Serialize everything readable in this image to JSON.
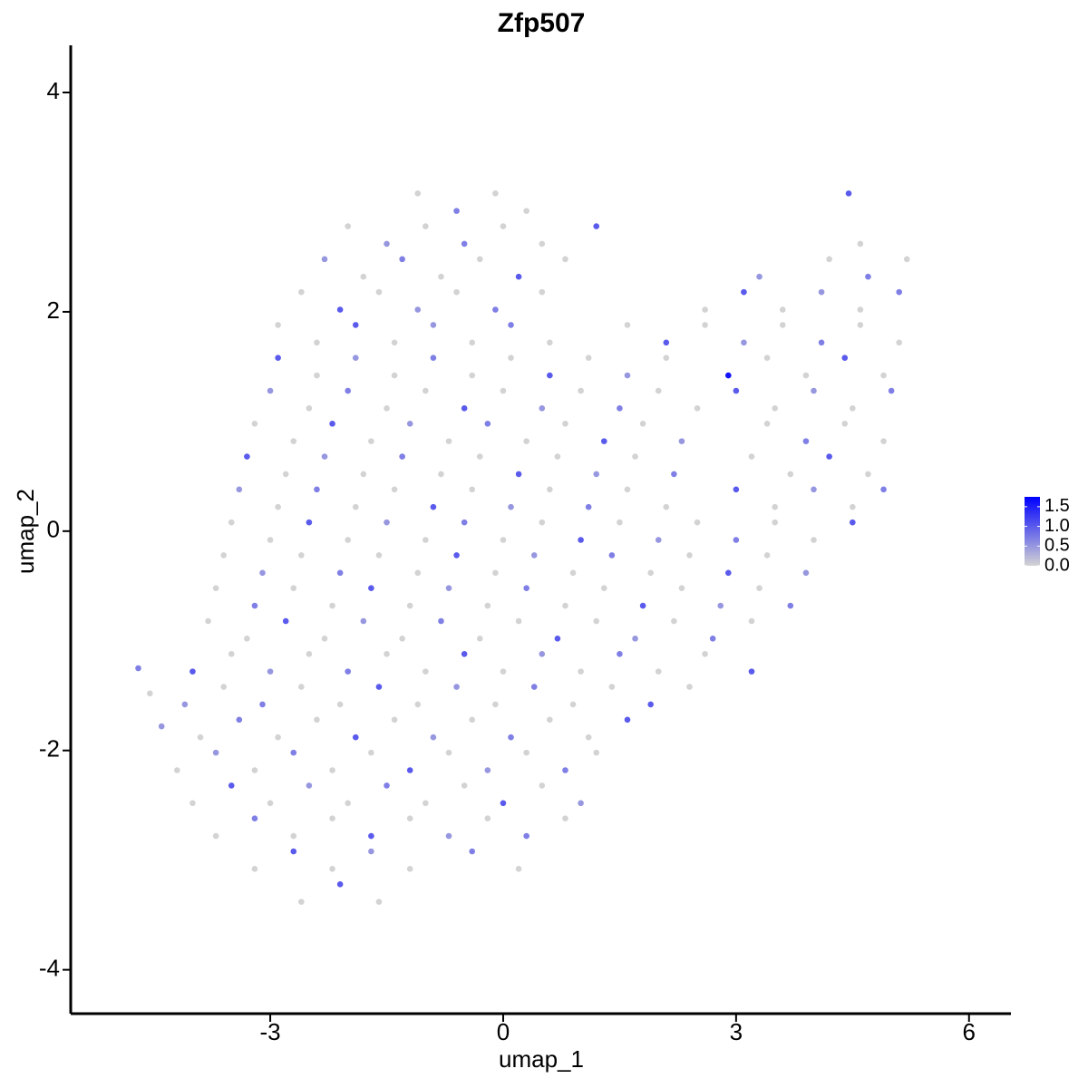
{
  "chart_data": {
    "type": "scatter",
    "title": "Zfp507",
    "xlabel": "umap_1",
    "ylabel": "umap_2",
    "xlim": [
      -5.57,
      6.54
    ],
    "ylim": [
      -4.4,
      4.43
    ],
    "xticks": [
      -3,
      0,
      3,
      6
    ],
    "yticks": [
      -4,
      -2,
      0,
      2,
      4
    ],
    "color_low": "#d3d3d3",
    "color_high": "#0000ff",
    "colorlim": [
      0,
      1.75
    ],
    "colorbar_ticks": [
      {
        "value": 0,
        "label": "0.0"
      },
      0.5,
      {
        "value": 1,
        "label": "1.0"
      },
      1.5
    ],
    "x": [
      -1.1,
      -0.6,
      -0.1,
      0.3,
      4.45,
      -2.0,
      -1.5,
      -1.0,
      -0.5,
      0.0,
      0.5,
      1.2,
      4.6,
      -2.3,
      -1.8,
      -1.3,
      -0.8,
      -0.3,
      0.2,
      0.8,
      3.3,
      4.2,
      4.7,
      5.2,
      -2.6,
      -2.1,
      -1.6,
      -1.1,
      -0.6,
      -0.1,
      0.5,
      2.6,
      3.1,
      3.6,
      4.1,
      4.6,
      5.1,
      -2.9,
      -2.4,
      -1.9,
      -1.4,
      -0.9,
      -0.4,
      0.1,
      0.6,
      1.6,
      2.1,
      2.6,
      3.1,
      3.6,
      4.1,
      4.6,
      5.1,
      -2.9,
      -2.4,
      -1.9,
      -1.4,
      -0.9,
      -0.4,
      0.1,
      0.6,
      1.1,
      1.6,
      2.1,
      2.9,
      3.4,
      3.9,
      4.4,
      4.9,
      -3.0,
      -2.5,
      -2.0,
      -1.5,
      -1.0,
      -0.5,
      0.0,
      0.5,
      1.0,
      1.5,
      2.0,
      2.5,
      3.0,
      3.5,
      4.0,
      4.5,
      5.0,
      -3.2,
      -2.7,
      -2.2,
      -1.7,
      -1.2,
      -0.7,
      -0.2,
      0.3,
      0.8,
      1.3,
      1.8,
      2.3,
      3.4,
      3.9,
      4.4,
      4.9,
      -3.3,
      -2.8,
      -2.3,
      -1.8,
      -1.3,
      -0.8,
      -0.3,
      0.2,
      0.7,
      1.2,
      1.7,
      2.2,
      3.2,
      3.7,
      4.2,
      4.7,
      -3.4,
      -2.9,
      -2.4,
      -1.9,
      -1.4,
      -0.9,
      -0.4,
      0.1,
      0.6,
      1.1,
      1.6,
      2.1,
      3.0,
      3.5,
      4.0,
      4.5,
      4.9,
      -3.5,
      -3.0,
      -2.5,
      -2.0,
      -1.5,
      -1.0,
      -0.5,
      0.0,
      0.5,
      1.0,
      1.5,
      2.0,
      2.5,
      3.0,
      3.5,
      4.0,
      4.5,
      -3.6,
      -3.1,
      -2.6,
      -2.1,
      -1.6,
      -1.1,
      -0.6,
      -0.1,
      0.4,
      0.9,
      1.4,
      1.9,
      2.4,
      2.9,
      3.4,
      3.9,
      -3.7,
      -3.2,
      -2.7,
      -2.2,
      -1.7,
      -1.2,
      -0.7,
      -0.2,
      0.3,
      0.8,
      1.3,
      1.8,
      2.3,
      2.8,
      3.3,
      3.7,
      -3.8,
      -3.3,
      -2.8,
      -2.3,
      -1.8,
      -1.3,
      -0.8,
      -0.3,
      0.2,
      0.7,
      1.2,
      1.7,
      2.2,
      2.7,
      3.2,
      -4.7,
      -4.0,
      -3.5,
      -3.0,
      -2.5,
      -2.0,
      -1.5,
      -1.0,
      -0.5,
      0.0,
      0.5,
      1.0,
      1.5,
      2.0,
      2.6,
      3.2,
      -4.55,
      -4.1,
      -3.6,
      -3.1,
      -2.6,
      -2.1,
      -1.6,
      -1.1,
      -0.6,
      -0.1,
      0.4,
      0.9,
      1.4,
      1.9,
      2.4,
      -4.4,
      -3.9,
      -3.4,
      -2.9,
      -2.4,
      -1.9,
      -1.4,
      -0.9,
      -0.4,
      0.1,
      0.6,
      1.1,
      1.6,
      -4.2,
      -3.7,
      -3.2,
      -2.7,
      -2.2,
      -1.7,
      -1.2,
      -0.7,
      -0.2,
      0.3,
      0.8,
      1.2,
      -4.0,
      -3.5,
      -3.0,
      -2.5,
      -2.0,
      -1.5,
      -1.0,
      -0.5,
      0.0,
      0.5,
      1.0,
      -3.7,
      -3.2,
      -2.7,
      -2.2,
      -1.7,
      -1.2,
      -0.7,
      -0.2,
      0.3,
      0.8,
      -3.2,
      -2.7,
      -2.2,
      -1.7,
      -1.2,
      -0.4,
      0.2,
      -2.6,
      -2.1,
      -1.6
    ],
    "y": [
      3.08,
      2.92,
      3.08,
      2.92,
      3.08,
      2.78,
      2.62,
      2.78,
      2.62,
      2.78,
      2.62,
      2.78,
      2.62,
      2.48,
      2.32,
      2.48,
      2.32,
      2.48,
      2.32,
      2.48,
      2.32,
      2.48,
      2.32,
      2.48,
      2.18,
      2.02,
      2.18,
      2.02,
      2.18,
      2.02,
      2.18,
      2.02,
      2.18,
      2.02,
      2.18,
      2.02,
      2.18,
      1.88,
      1.72,
      1.88,
      1.72,
      1.88,
      1.72,
      1.88,
      1.72,
      1.88,
      1.72,
      1.88,
      1.72,
      1.88,
      1.72,
      1.88,
      1.72,
      1.58,
      1.42,
      1.58,
      1.42,
      1.58,
      1.42,
      1.58,
      1.42,
      1.58,
      1.42,
      1.58,
      1.42,
      1.58,
      1.42,
      1.58,
      1.42,
      1.28,
      1.12,
      1.28,
      1.12,
      1.28,
      1.12,
      1.28,
      1.12,
      1.28,
      1.12,
      1.28,
      1.12,
      1.28,
      1.12,
      1.28,
      1.12,
      1.28,
      0.98,
      0.82,
      0.98,
      0.82,
      0.98,
      0.82,
      0.98,
      0.82,
      0.98,
      0.82,
      0.98,
      0.82,
      0.98,
      0.82,
      0.98,
      0.82,
      0.68,
      0.52,
      0.68,
      0.52,
      0.68,
      0.52,
      0.68,
      0.52,
      0.68,
      0.52,
      0.68,
      0.52,
      0.68,
      0.52,
      0.68,
      0.52,
      0.38,
      0.22,
      0.38,
      0.22,
      0.38,
      0.22,
      0.38,
      0.22,
      0.38,
      0.22,
      0.38,
      0.22,
      0.38,
      0.22,
      0.38,
      0.22,
      0.38,
      0.08,
      -0.08,
      0.08,
      -0.08,
      0.08,
      -0.08,
      0.08,
      -0.08,
      0.08,
      -0.08,
      0.08,
      -0.08,
      0.08,
      -0.08,
      0.08,
      -0.08,
      0.08,
      -0.22,
      -0.38,
      -0.22,
      -0.38,
      -0.22,
      -0.38,
      -0.22,
      -0.38,
      -0.22,
      -0.38,
      -0.22,
      -0.38,
      -0.22,
      -0.38,
      -0.22,
      -0.38,
      -0.52,
      -0.68,
      -0.52,
      -0.68,
      -0.52,
      -0.68,
      -0.52,
      -0.68,
      -0.52,
      -0.68,
      -0.52,
      -0.68,
      -0.52,
      -0.68,
      -0.52,
      -0.68,
      -0.82,
      -0.98,
      -0.82,
      -0.98,
      -0.82,
      -0.98,
      -0.82,
      -0.98,
      -0.82,
      -0.98,
      -0.82,
      -0.98,
      -0.82,
      -0.98,
      -0.82,
      -1.25,
      -1.28,
      -1.12,
      -1.28,
      -1.12,
      -1.28,
      -1.12,
      -1.28,
      -1.12,
      -1.28,
      -1.12,
      -1.28,
      -1.12,
      -1.28,
      -1.12,
      -1.28,
      -1.48,
      -1.58,
      -1.42,
      -1.58,
      -1.42,
      -1.58,
      -1.42,
      -1.58,
      -1.42,
      -1.58,
      -1.42,
      -1.58,
      -1.42,
      -1.58,
      -1.42,
      -1.78,
      -1.88,
      -1.72,
      -1.88,
      -1.72,
      -1.88,
      -1.72,
      -1.88,
      -1.72,
      -1.88,
      -1.72,
      -1.88,
      -1.72,
      -2.18,
      -2.02,
      -2.18,
      -2.02,
      -2.18,
      -2.02,
      -2.18,
      -2.02,
      -2.18,
      -2.02,
      -2.18,
      -2.02,
      -2.48,
      -2.32,
      -2.48,
      -2.32,
      -2.48,
      -2.32,
      -2.48,
      -2.32,
      -2.48,
      -2.32,
      -2.48,
      -2.78,
      -2.62,
      -2.78,
      -2.62,
      -2.78,
      -2.62,
      -2.78,
      -2.62,
      -2.78,
      -2.62,
      -3.08,
      -2.92,
      -3.08,
      -2.92,
      -3.08,
      -2.92,
      -3.08,
      -3.38,
      -3.22,
      -3.38
    ],
    "values": [
      0,
      0.7,
      0,
      0,
      1.0,
      0,
      0.5,
      0,
      0.7,
      0,
      0,
      1.0,
      0,
      0.5,
      0,
      0.7,
      0,
      0,
      1.0,
      0,
      0.5,
      0,
      0.7,
      0,
      0,
      1.0,
      0,
      0.5,
      0,
      0.7,
      0,
      0,
      1.0,
      0,
      0.5,
      0,
      0.7,
      0,
      0,
      1.0,
      0,
      0.5,
      0,
      0.7,
      0,
      0,
      1.0,
      0,
      0.5,
      0,
      0.7,
      0,
      0,
      1.0,
      0,
      0.5,
      0,
      0.7,
      0,
      0,
      1.0,
      0,
      0.5,
      0,
      1.6,
      0,
      0,
      1.0,
      0,
      0.5,
      0,
      0.7,
      0,
      0,
      1.0,
      0,
      0.5,
      0,
      0.7,
      0,
      0,
      1.0,
      0,
      0.5,
      0,
      0.7,
      0,
      0,
      1.0,
      0,
      0.5,
      0,
      0.7,
      0,
      0,
      1.0,
      0,
      0.5,
      0,
      0.7,
      0,
      0,
      1.0,
      0,
      0.5,
      0,
      0.7,
      0,
      0,
      1.0,
      0,
      0.5,
      0,
      0.7,
      0,
      0,
      1.0,
      0,
      0.5,
      0,
      0.7,
      0,
      0,
      1.0,
      0,
      0.5,
      0,
      0.7,
      0,
      0,
      1.0,
      0,
      0.5,
      0,
      0.7,
      0,
      0,
      1.0,
      0,
      0.5,
      0,
      0.7,
      0,
      0,
      1.0,
      0,
      0.5,
      0,
      0.7,
      0,
      0,
      1.0,
      0,
      0.5,
      0,
      0.7,
      0,
      0,
      1.0,
      0,
      0.5,
      0,
      0.7,
      0,
      0,
      1.0,
      0,
      0.5,
      0,
      0.7,
      0,
      0,
      1.0,
      0,
      0.5,
      0,
      0.7,
      0,
      0,
      1.0,
      0,
      0.5,
      0,
      0.7,
      0,
      0,
      1.0,
      0,
      0.5,
      0,
      0.7,
      0,
      0,
      1.0,
      0,
      0.5,
      0,
      0.7,
      0,
      0.7,
      1.0,
      0,
      0.5,
      0,
      0.7,
      0,
      0,
      1.0,
      0,
      0.5,
      0,
      0.7,
      0,
      0,
      1.0,
      0,
      0.5,
      0,
      0.7,
      0,
      0,
      1.0,
      0,
      0.5,
      0,
      0.7,
      0,
      0,
      1.0,
      0,
      0.5,
      0,
      0.7,
      0,
      0,
      1.0,
      0,
      0.5,
      0,
      0.7,
      0,
      0,
      1.0,
      0,
      0.5,
      0,
      0.7,
      0,
      0,
      1.0,
      0,
      0.5,
      0,
      0.7,
      0,
      0,
      1.0,
      0,
      0.5,
      0,
      0.7,
      0,
      0,
      1.0,
      0,
      0.5,
      0,
      0.7,
      0,
      0,
      1.0,
      0,
      0.5,
      0,
      0.7,
      0,
      0,
      1.0,
      0,
      0.5,
      0,
      0.7,
      0,
      0,
      1.0,
      0
    ]
  }
}
